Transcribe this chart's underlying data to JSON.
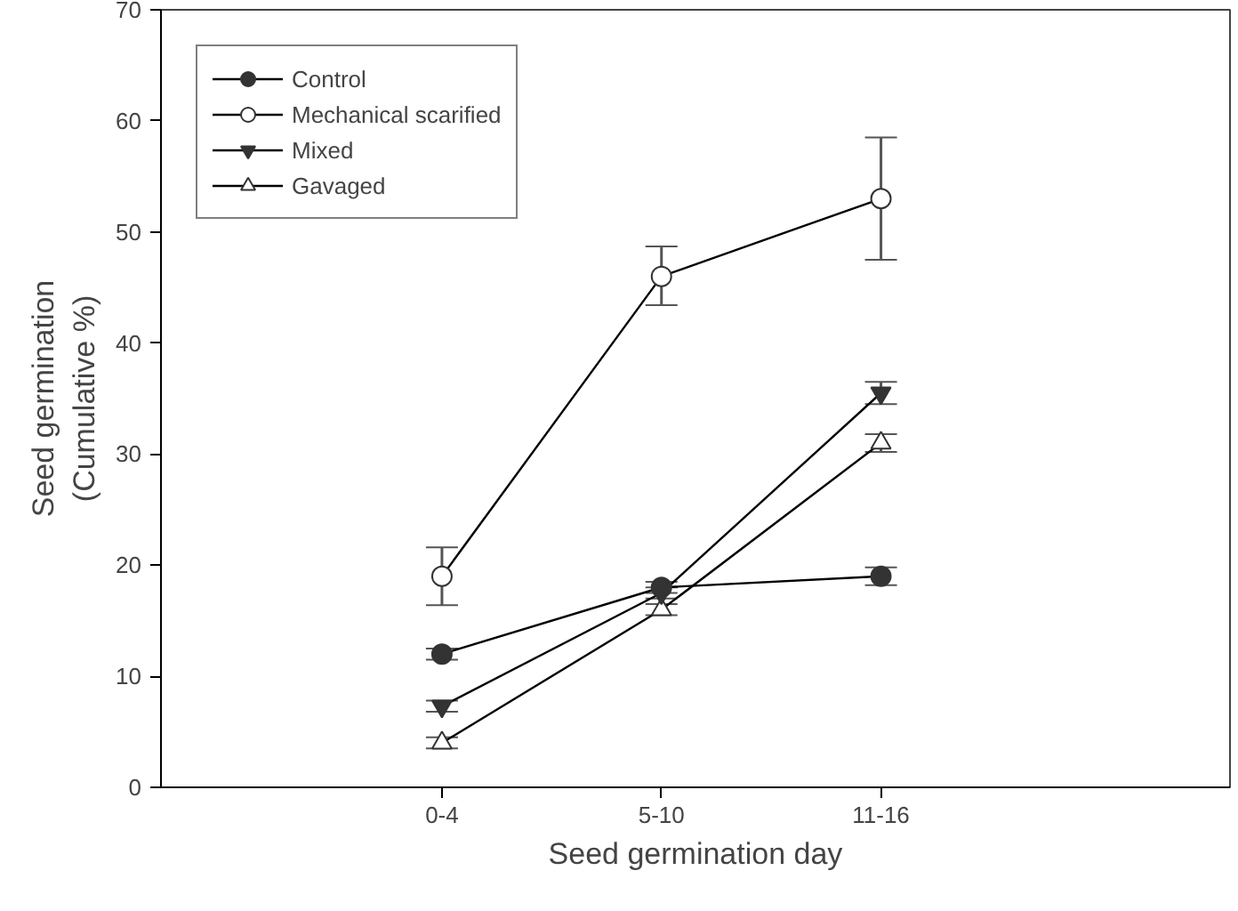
{
  "chart_data": {
    "type": "line",
    "xlabel": "Seed germination day",
    "ylabel": "Seed germination\n(Cumulative %)",
    "categories": [
      "0-4",
      "5-10",
      "11-16"
    ],
    "ylim": [
      0,
      70
    ],
    "yticks": [
      0,
      10,
      20,
      30,
      40,
      50,
      60,
      70
    ],
    "grid": false,
    "legend": "top left",
    "series": [
      {
        "name": "Control",
        "color": "#333333",
        "marker": "circle",
        "values": [
          12,
          18,
          19
        ],
        "errors": [
          0.5,
          0.5,
          0.8
        ]
      },
      {
        "name": "Mechanical scarified",
        "color": "#ffffff",
        "marker": "circle",
        "values": [
          19,
          46,
          53
        ],
        "errors": [
          [
            16.4,
            21.6
          ],
          [
            43.4,
            48.7
          ],
          [
            47.5,
            58.5
          ]
        ]
      },
      {
        "name": "Mixed",
        "color": "#333333",
        "marker": "triangle",
        "values": [
          7.3,
          17.5,
          35.5
        ],
        "errors": [
          0.5,
          0.5,
          1
        ]
      },
      {
        "name": "Gavaged",
        "color": "#ffffff",
        "marker": "triangle",
        "values": [
          4,
          16,
          31
        ],
        "errors": [
          0.5,
          0.5,
          0.8
        ]
      }
    ]
  }
}
